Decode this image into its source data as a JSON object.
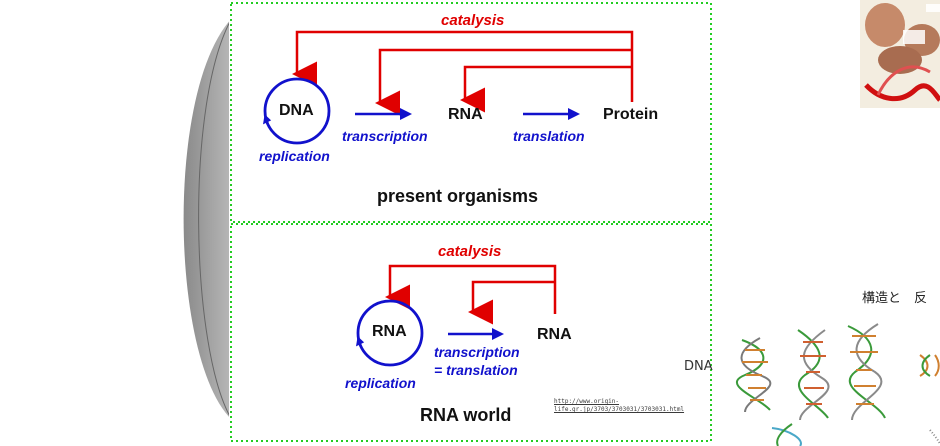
{
  "top_panel": {
    "catalysis": "catalysis",
    "dna": "DNA",
    "replication": "replication",
    "transcription": "transcription",
    "rna": "RNA",
    "translation": "translation",
    "protein": "Protein",
    "caption": "present organisms"
  },
  "bottom_panel": {
    "catalysis": "catalysis",
    "rna_circle": "RNA",
    "replication": "replication",
    "transcription_line1": "transcription",
    "transcription_line2": "= translation",
    "rna_product": "RNA",
    "caption": "RNA world",
    "url_line1": "http://www.origin-",
    "url_line2": "life.gr.jp/3703/3703031/3703031.html"
  },
  "side": {
    "heading": "構造と　反",
    "dna_label": "DNA"
  },
  "colors": {
    "catalysis_arrows": "#e00000",
    "flow_arrows": "#1111cc",
    "dashed_border": "#22cc22"
  }
}
